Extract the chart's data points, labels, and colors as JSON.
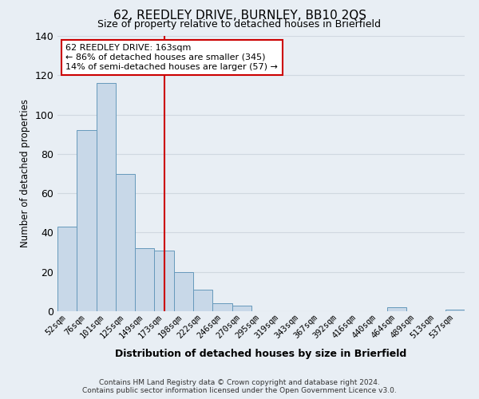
{
  "title": "62, REEDLEY DRIVE, BURNLEY, BB10 2QS",
  "subtitle": "Size of property relative to detached houses in Brierfield",
  "xlabel": "Distribution of detached houses by size in Brierfield",
  "ylabel": "Number of detached properties",
  "bin_labels": [
    "52sqm",
    "76sqm",
    "101sqm",
    "125sqm",
    "149sqm",
    "173sqm",
    "198sqm",
    "222sqm",
    "246sqm",
    "270sqm",
    "295sqm",
    "319sqm",
    "343sqm",
    "367sqm",
    "392sqm",
    "416sqm",
    "440sqm",
    "464sqm",
    "489sqm",
    "513sqm",
    "537sqm"
  ],
  "bar_values": [
    43,
    92,
    116,
    70,
    32,
    31,
    20,
    11,
    4,
    3,
    0,
    0,
    0,
    0,
    0,
    0,
    0,
    2,
    0,
    0,
    1
  ],
  "bar_color": "#c8d8e8",
  "bar_edge_color": "#6699bb",
  "grid_color": "#d0d8e0",
  "background_color": "#e8eef4",
  "vline_x_index": 5,
  "vline_color": "#cc0000",
  "annotation_line1": "62 REEDLEY DRIVE: 163sqm",
  "annotation_line2": "← 86% of detached houses are smaller (345)",
  "annotation_line3": "14% of semi-detached houses are larger (57) →",
  "annotation_box_color": "#ffffff",
  "annotation_box_edge_color": "#cc0000",
  "ylim": [
    0,
    140
  ],
  "yticks": [
    0,
    20,
    40,
    60,
    80,
    100,
    120,
    140
  ],
  "footer_line1": "Contains HM Land Registry data © Crown copyright and database right 2024.",
  "footer_line2": "Contains public sector information licensed under the Open Government Licence v3.0."
}
